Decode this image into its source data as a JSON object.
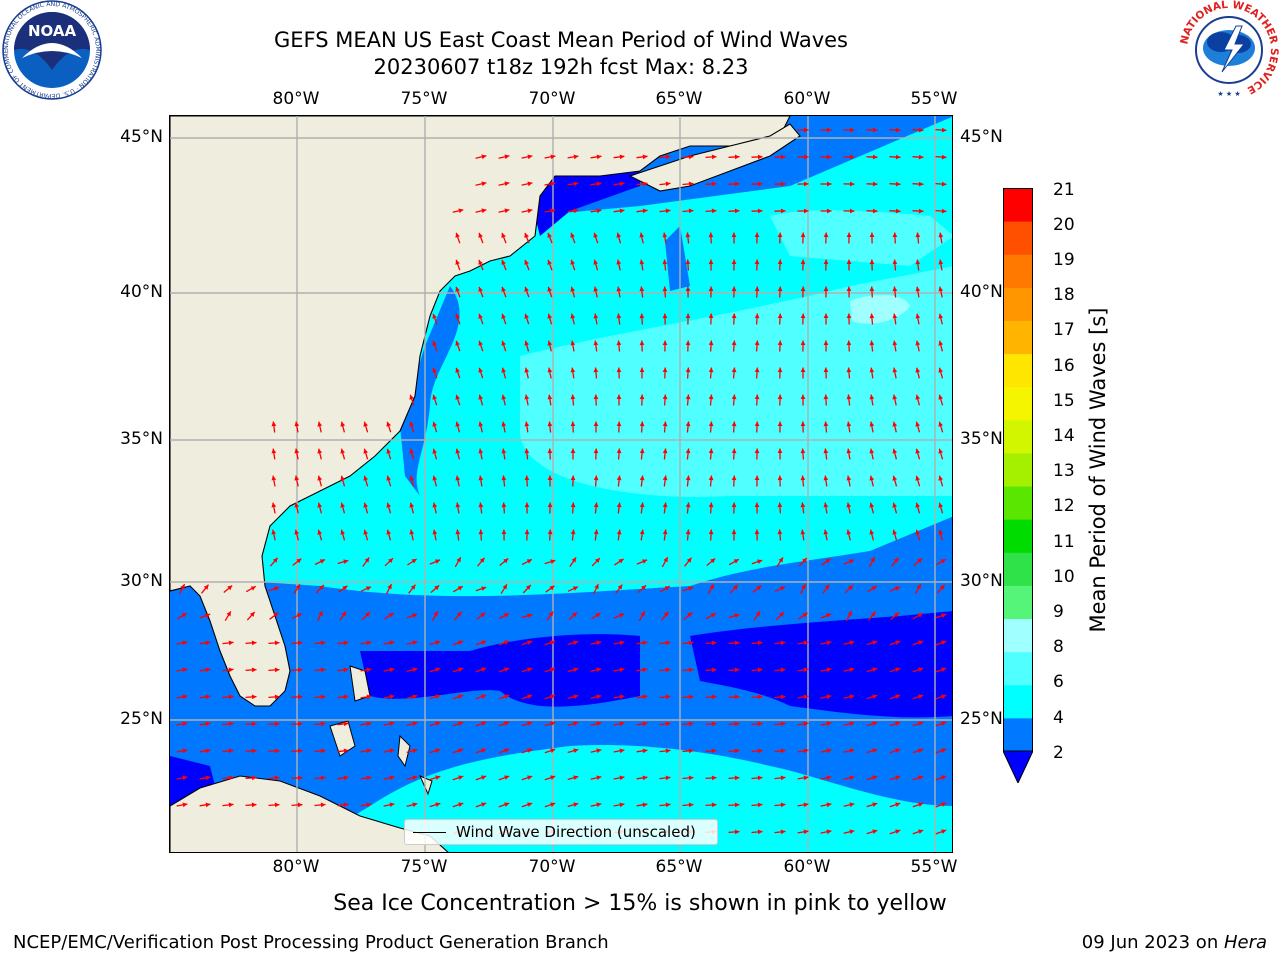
{
  "title": {
    "line1": "GEFS MEAN US East Coast Mean Period of Wind Waves",
    "line2": "20230607 t18z 192h fcst   Max: 8.23"
  },
  "axes": {
    "lon_labels": [
      "80°W",
      "75°W",
      "70°W",
      "65°W",
      "60°W",
      "55°W"
    ],
    "lat_labels": [
      "45°N",
      "40°N",
      "35°N",
      "30°N",
      "25°N"
    ]
  },
  "legend": {
    "label": "Wind Wave Direction (unscaled)"
  },
  "colorbar": {
    "title": "Mean Period of Wind Waves [s]",
    "tick_labels": [
      "21",
      "20",
      "19",
      "18",
      "17",
      "16",
      "15",
      "14",
      "13",
      "12",
      "11",
      "10",
      "9",
      "8",
      "6",
      "4",
      "2"
    ],
    "colors": [
      "#0000ff",
      "#0078ff",
      "#00ffff",
      "#50ffff",
      "#a0ffff",
      "#55f57a",
      "#2fe24a",
      "#00dc00",
      "#5ae600",
      "#a5f000",
      "#d2f500",
      "#f5f500",
      "#ffe600",
      "#ffb400",
      "#ff9600",
      "#ff7800",
      "#ff5000",
      "#ff0000"
    ]
  },
  "subtitle": "Sea Ice Concentration > 15% is shown in pink to yellow",
  "credits": {
    "left": "NCEP/EMC/Verification Post Processing Product Generation Branch",
    "right_date": "09 Jun 2023 on ",
    "right_machine": "Hera"
  },
  "logos": {
    "noaa_text": "NOAA",
    "noaa_ring_text": "NATIONAL OCEANIC AND ATMOSPHERIC ADMINISTRATION · U.S. DEPARTMENT OF COMMERCE",
    "nws_ring_text": "NATIONAL WEATHER SERVICE"
  },
  "colors": {
    "land": "#efedde",
    "arrow": "#ff0000",
    "grid": "#b0b0b0"
  }
}
